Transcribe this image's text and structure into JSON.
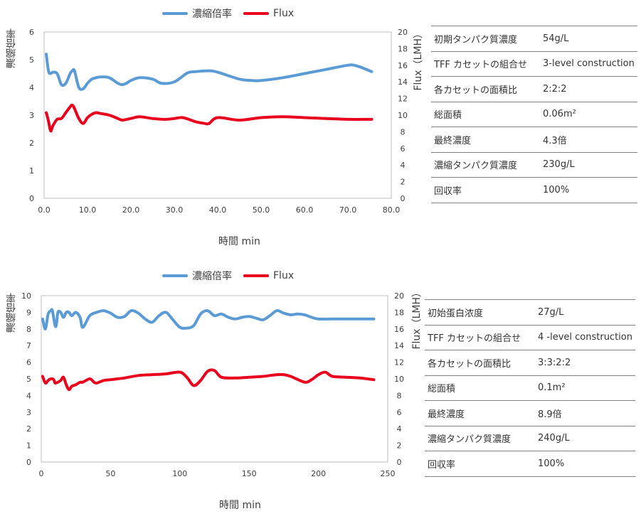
{
  "charts": [
    {
      "legend": {
        "series1": "濃縮倍率",
        "series2": "Flux"
      },
      "xlabel": "時間 min",
      "ylabel_left": "濃縮倍率",
      "ylabel_right": "Flux（LMH）",
      "table": [
        {
          "k": "初期タンパク質濃度",
          "v": "54g/L"
        },
        {
          "k": "TFF カセットの組合せ",
          "v": "3-level construction"
        },
        {
          "k": "各カセットの面積比",
          "v": "2:2:2"
        },
        {
          "k": "総面積",
          "v": "0.06m²"
        },
        {
          "k": "最終濃度",
          "v": "4.3倍"
        },
        {
          "k": "濃縮タンパク質濃度",
          "v": "230g/L"
        },
        {
          "k": "回収率",
          "v": "100%"
        }
      ]
    },
    {
      "legend": {
        "series1": "濃縮倍率",
        "series2": "Flux"
      },
      "xlabel": "時間 min",
      "ylabel_left": "濃縮倍率",
      "ylabel_right": "Flux（LMH）",
      "table": [
        {
          "k": "初始蛋白浓度",
          "v": "27g/L"
        },
        {
          "k": "TFF カセットの組合せ",
          "v": "4 -level construction"
        },
        {
          "k": "各カセットの面積比",
          "v": "3:3:2:2"
        },
        {
          "k": "総面積",
          "v": "0.1m²"
        },
        {
          "k": "最終濃度",
          "v": "8.9倍"
        },
        {
          "k": "濃縮タンパク質濃度",
          "v": "240g/L"
        },
        {
          "k": "回収率",
          "v": "100%"
        }
      ]
    }
  ],
  "colors": {
    "series1": "#5b9bd5",
    "series2": "#e8001c",
    "axis": "#bfbfbf",
    "text": "#404040"
  },
  "chart_data": [
    {
      "type": "line",
      "xlim": [
        0,
        80
      ],
      "xticks": [
        "0.0",
        "10.0",
        "20.0",
        "30.0",
        "40.0",
        "50.0",
        "60.0",
        "70.0",
        "80.0"
      ],
      "ylim_left": [
        0,
        6
      ],
      "yticks_left": [
        "0",
        "1",
        "2",
        "3",
        "4",
        "5",
        "6"
      ],
      "ylim_right": [
        0,
        20
      ],
      "yticks_right": [
        "0",
        "2",
        "4",
        "6",
        "8",
        "10",
        "12",
        "14",
        "16",
        "18",
        "20"
      ],
      "series": [
        {
          "name": "濃縮倍率",
          "axis": "left",
          "x": [
            0.5,
            1,
            1.5,
            2,
            3,
            4,
            5,
            6,
            6.5,
            7,
            8,
            9,
            10,
            11,
            12,
            13,
            15,
            17,
            18,
            19,
            20,
            22,
            25,
            27,
            30,
            33,
            35,
            38,
            40,
            45,
            48,
            50,
            55,
            60,
            65,
            70,
            72,
            75.5
          ],
          "y": [
            5.2,
            4.6,
            4.5,
            4.55,
            4.5,
            4.1,
            4.15,
            4.5,
            4.6,
            4.6,
            4.0,
            3.95,
            4.15,
            4.3,
            4.35,
            4.38,
            4.35,
            4.15,
            4.1,
            4.15,
            4.25,
            4.35,
            4.3,
            4.15,
            4.2,
            4.52,
            4.57,
            4.6,
            4.55,
            4.3,
            4.25,
            4.25,
            4.35,
            4.5,
            4.65,
            4.8,
            4.78,
            4.57
          ]
        },
        {
          "name": "Flux",
          "axis": "right",
          "x": [
            0.5,
            1,
            1.5,
            2,
            3,
            4,
            5,
            6,
            6.5,
            7,
            8,
            9,
            10,
            11,
            12,
            13,
            15,
            17,
            18,
            20,
            22,
            25,
            28,
            30,
            32,
            35,
            37,
            38,
            40,
            45,
            50,
            55,
            60,
            65,
            70,
            75.5
          ],
          "y": [
            10.3,
            9.3,
            8.1,
            8.7,
            9.5,
            9.6,
            10.3,
            11.0,
            11.2,
            10.8,
            9.6,
            9.0,
            9.7,
            10.1,
            10.3,
            10.2,
            10.0,
            9.6,
            9.4,
            9.6,
            9.8,
            9.6,
            9.5,
            9.6,
            9.7,
            9.2,
            9.0,
            9.0,
            9.7,
            9.4,
            9.7,
            9.8,
            9.7,
            9.6,
            9.5,
            9.5
          ]
        }
      ]
    },
    {
      "type": "line",
      "xlim": [
        0,
        250
      ],
      "xticks": [
        "0",
        "50",
        "100",
        "150",
        "200",
        "250"
      ],
      "ylim_left": [
        0,
        10
      ],
      "yticks_left": [
        "0",
        "1",
        "2",
        "3",
        "4",
        "5",
        "6",
        "7",
        "8",
        "9",
        "10"
      ],
      "ylim_right": [
        0,
        20
      ],
      "yticks_right": [
        "0",
        "2",
        "4",
        "6",
        "8",
        "10",
        "12",
        "14",
        "16",
        "18",
        "20"
      ],
      "series": [
        {
          "name": "濃縮倍率",
          "axis": "left",
          "x": [
            1,
            3,
            5,
            7,
            8,
            10,
            11,
            12,
            14,
            16,
            18,
            20,
            22,
            25,
            28,
            30,
            35,
            40,
            45,
            50,
            55,
            60,
            65,
            70,
            75,
            80,
            85,
            90,
            95,
            100,
            105,
            110,
            115,
            120,
            125,
            130,
            135,
            140,
            145,
            150,
            155,
            160,
            165,
            170,
            175,
            180,
            185,
            190,
            195,
            200,
            210,
            220,
            230,
            240
          ],
          "y": [
            8.6,
            8.0,
            8.9,
            9.1,
            9.1,
            8.2,
            8.3,
            9.0,
            9.0,
            8.7,
            9.0,
            9.0,
            8.8,
            9.0,
            8.7,
            8.1,
            8.8,
            9.0,
            9.1,
            8.95,
            8.7,
            8.75,
            9.1,
            8.95,
            8.6,
            8.4,
            8.8,
            9.0,
            8.55,
            8.1,
            8.05,
            8.2,
            8.9,
            9.1,
            8.8,
            8.9,
            8.7,
            8.6,
            8.7,
            8.75,
            8.65,
            8.55,
            8.8,
            9.1,
            8.95,
            8.85,
            8.9,
            8.85,
            8.7,
            8.6,
            8.6,
            8.6,
            8.6,
            8.6
          ]
        },
        {
          "name": "Flux",
          "axis": "right",
          "x": [
            1,
            3,
            5,
            7,
            9,
            10,
            12,
            14,
            16,
            18,
            20,
            22,
            25,
            28,
            30,
            35,
            38,
            40,
            45,
            50,
            55,
            60,
            70,
            80,
            90,
            100,
            105,
            110,
            115,
            120,
            125,
            130,
            140,
            150,
            160,
            170,
            175,
            180,
            190,
            195,
            200,
            205,
            210,
            220,
            230,
            240
          ],
          "y": [
            10.3,
            9.5,
            9.8,
            10.0,
            9.9,
            9.5,
            9.6,
            9.8,
            10.2,
            9.3,
            8.7,
            9.1,
            9.3,
            9.6,
            9.6,
            10.0,
            9.6,
            9.5,
            9.8,
            9.9,
            10.0,
            10.1,
            10.4,
            10.5,
            10.6,
            10.8,
            10.2,
            9.2,
            9.8,
            10.9,
            11.0,
            10.2,
            10.1,
            10.2,
            10.3,
            10.5,
            10.5,
            10.3,
            9.6,
            9.9,
            10.5,
            10.8,
            10.3,
            10.2,
            10.1,
            9.9
          ]
        }
      ]
    }
  ]
}
